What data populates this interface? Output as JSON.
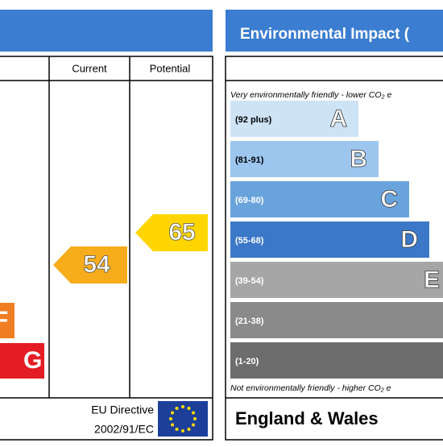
{
  "energy_panel": {
    "columns": [
      "Current",
      "Potential"
    ],
    "bands": [
      {
        "letter": "F",
        "color": "#ef7d22"
      },
      {
        "letter": "G",
        "color": "#e31d23"
      }
    ],
    "current": {
      "value": "54",
      "color": "#f7ac1b"
    },
    "potential": {
      "value": "65",
      "color": "#ffd500"
    },
    "footer": {
      "line1": "EU Directive",
      "line2": "2002/91/EC"
    }
  },
  "environment_panel": {
    "title": "Environmental Impact (",
    "top_note": "Very environmentally friendly - lower CO₂ e",
    "bottom_note": "Not environmentally friendly - higher CO₂ e",
    "bands": [
      {
        "range": "(92 plus)",
        "letter": "A",
        "color": "#cfe3f6"
      },
      {
        "range": "(81-91)",
        "letter": "B",
        "color": "#9dc6ef"
      },
      {
        "range": "(69-80)",
        "letter": "C",
        "color": "#69a3dc"
      },
      {
        "range": "(55-68)",
        "letter": "D",
        "color": "#3c78c8"
      },
      {
        "range": "(39-54)",
        "letter": "E",
        "color": "#a6a6a6"
      },
      {
        "range": "(21-38)",
        "letter": "",
        "color": "#8a8a8a"
      },
      {
        "range": "(1-20)",
        "letter": "",
        "color": "#6d6d6d"
      }
    ],
    "footer": "England & Wales"
  }
}
